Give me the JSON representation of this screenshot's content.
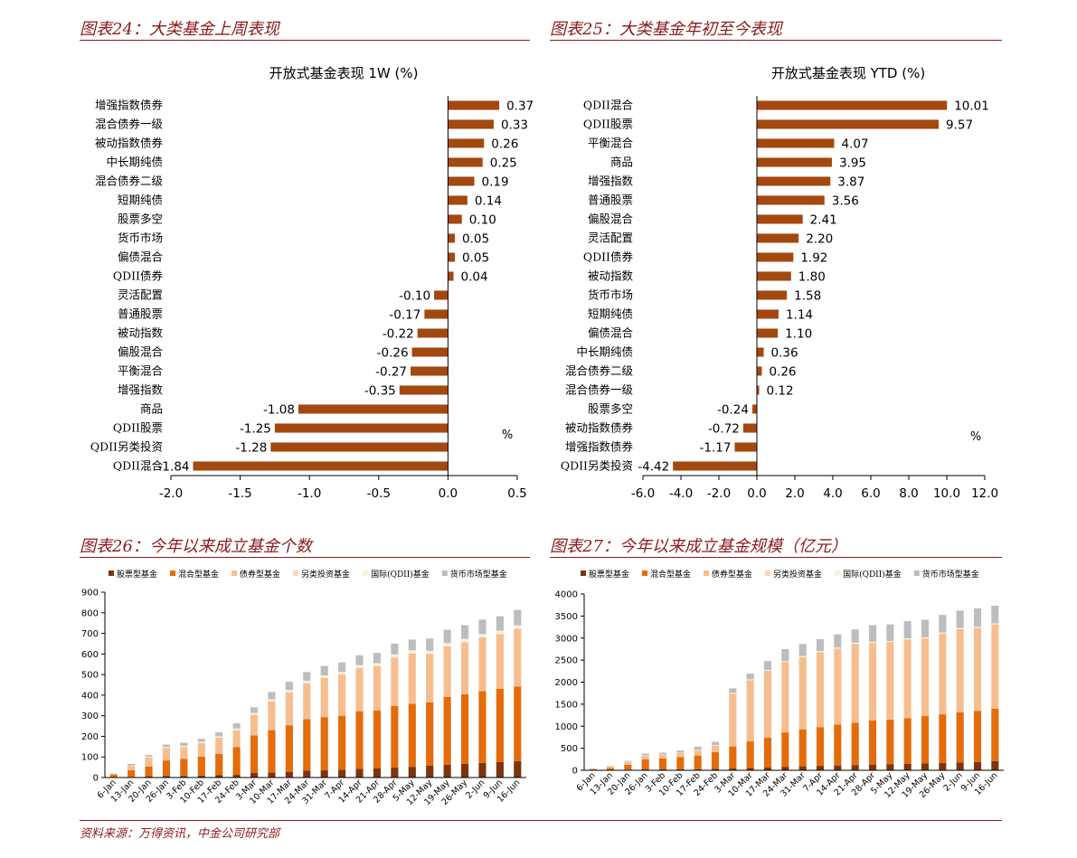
{
  "titles": {
    "p24": "图表24：大类基金上周表现",
    "p25": "图表25：大类基金年初至今表现",
    "p26": "图表26：今年以来成立基金个数",
    "p27": "图表27：今年以来成立基金规模（亿元）"
  },
  "source": "资料来源：万得资讯，中金公司研究部",
  "chart_data": [
    {
      "type": "bar",
      "orientation": "horizontal",
      "title": "开放式基金表现 1W (%)",
      "unit_label": "%",
      "xlim": [
        -2.0,
        0.5
      ],
      "xticks": [
        "-2.0",
        "-1.5",
        "-1.0",
        "-0.5",
        "0.0",
        "0.5"
      ],
      "categories": [
        "增强指数债券",
        "混合债券一级",
        "被动指数债券",
        "中长期纯债",
        "混合债券二级",
        "短期纯债",
        "股票多空",
        "货币市场",
        "偏债混合",
        "QDII债券",
        "灵活配置",
        "普通股票",
        "被动指数",
        "偏股混合",
        "平衡混合",
        "增强指数",
        "商品",
        "QDII股票",
        "QDII另类投资",
        "QDII混合"
      ],
      "values": [
        0.37,
        0.33,
        0.26,
        0.25,
        0.19,
        0.14,
        0.1,
        0.05,
        0.05,
        0.04,
        -0.1,
        -0.17,
        -0.22,
        -0.26,
        -0.27,
        -0.35,
        -1.08,
        -1.25,
        -1.28,
        -1.84
      ],
      "labels": [
        "0.37",
        "0.33",
        "0.26",
        "0.25",
        "0.19",
        "0.14",
        "0.10",
        "0.05",
        "0.05",
        "0.04",
        "-0.10",
        "-0.17",
        "-0.22",
        "-0.26",
        "-0.27",
        "-0.35",
        "-1.08",
        "-1.25",
        "-1.28",
        "-1.84"
      ],
      "color": "#a3480f"
    },
    {
      "type": "bar",
      "orientation": "horizontal",
      "title": "开放式基金表现 YTD (%)",
      "unit_label": "%",
      "xlim": [
        -6.0,
        12.0
      ],
      "xticks": [
        "-6.0",
        "-4.0",
        "-2.0",
        "0.0",
        "2.0",
        "4.0",
        "6.0",
        "8.0",
        "10.0",
        "12.0"
      ],
      "categories": [
        "QDII混合",
        "QDII股票",
        "平衡混合",
        "商品",
        "增强指数",
        "普通股票",
        "偏股混合",
        "灵活配置",
        "QDII债券",
        "被动指数",
        "货币市场",
        "短期纯债",
        "偏债混合",
        "中长期纯债",
        "混合债券二级",
        "混合债券一级",
        "股票多空",
        "被动指数债券",
        "增强指数债券",
        "QDII另类投资"
      ],
      "values": [
        10.01,
        9.57,
        4.07,
        3.95,
        3.87,
        3.56,
        2.41,
        2.2,
        1.92,
        1.8,
        1.58,
        1.14,
        1.1,
        0.36,
        0.26,
        0.12,
        -0.24,
        -0.72,
        -1.17,
        -4.42
      ],
      "labels": [
        "10.01",
        "9.57",
        "4.07",
        "3.95",
        "3.87",
        "3.56",
        "2.41",
        "2.20",
        "1.92",
        "1.80",
        "1.58",
        "1.14",
        "1.10",
        "0.36",
        "0.26",
        "0.12",
        "-0.24",
        "-0.72",
        "-1.17",
        "-4.42"
      ],
      "color": "#a3480f"
    },
    {
      "type": "bar",
      "stacked": true,
      "ylim": [
        0,
        900
      ],
      "yticks": [
        0,
        100,
        200,
        300,
        400,
        500,
        600,
        700,
        800,
        900
      ],
      "categories": [
        "6-Jan",
        "13-Jan",
        "20-Jan",
        "26-Jan",
        "3-Feb",
        "10-Feb",
        "17-Feb",
        "24-Feb",
        "3-Mar",
        "10-Mar",
        "17-Mar",
        "24-Mar",
        "31-Mar",
        "7-Apr",
        "14-Apr",
        "21-Apr",
        "28-Apr",
        "5-May",
        "12-May",
        "19-May",
        "26-May",
        "2-Jun",
        "9-Jun",
        "16-Jun"
      ],
      "series": [
        {
          "name": "股票型基金",
          "color": "#7a3510",
          "values": [
            1,
            3,
            6,
            8,
            8,
            9,
            11,
            13,
            22,
            25,
            28,
            33,
            35,
            38,
            42,
            44,
            48,
            52,
            57,
            62,
            67,
            71,
            76,
            80
          ]
        },
        {
          "name": "混合型基金",
          "color": "#e46c0a",
          "values": [
            13,
            32,
            47,
            75,
            82,
            93,
            104,
            135,
            182,
            205,
            225,
            250,
            258,
            262,
            280,
            282,
            300,
            306,
            308,
            330,
            337,
            348,
            355,
            362
          ]
        },
        {
          "name": "债券型基金",
          "color": "#f6be8e",
          "values": [
            5,
            20,
            45,
            60,
            58,
            65,
            78,
            82,
            100,
            140,
            160,
            175,
            190,
            200,
            210,
            215,
            235,
            245,
            235,
            245,
            253,
            262,
            265,
            280
          ]
        },
        {
          "name": "另类投资基金",
          "color": "#fbd9b8",
          "values": [
            0,
            0,
            0,
            0,
            0,
            0,
            0,
            0,
            0,
            0,
            0,
            0,
            0,
            0,
            0,
            0,
            0,
            0,
            0,
            0,
            0,
            0,
            0,
            0
          ]
        },
        {
          "name": "国际(QDII)基金",
          "color": "#fdeedd",
          "values": [
            2,
            3,
            4,
            5,
            6,
            6,
            7,
            8,
            10,
            10,
            12,
            12,
            13,
            13,
            14,
            14,
            15,
            15,
            15,
            16,
            16,
            16,
            17,
            17
          ]
        },
        {
          "name": "货币市场型基金",
          "color": "#bdbdbd",
          "values": [
            1,
            8,
            8,
            12,
            15,
            15,
            20,
            25,
            27,
            35,
            40,
            42,
            46,
            46,
            48,
            50,
            52,
            52,
            60,
            65,
            67,
            70,
            70,
            75
          ]
        }
      ]
    },
    {
      "type": "bar",
      "stacked": true,
      "ylim": [
        0,
        4000
      ],
      "yticks": [
        0,
        500,
        1000,
        1500,
        2000,
        2500,
        3000,
        3500,
        4000
      ],
      "categories": [
        "6-Jan",
        "13-Jan",
        "20-Jan",
        "26-Jan",
        "3-Feb",
        "10-Feb",
        "17-Feb",
        "24-Feb",
        "3-Mar",
        "10-Mar",
        "17-Mar",
        "24-Mar",
        "31-Mar",
        "7-Apr",
        "14-Apr",
        "21-Apr",
        "28-Apr",
        "5-May",
        "12-May",
        "19-May",
        "26-May",
        "2-Jun",
        "9-Jun",
        "16-Jun"
      ],
      "series": [
        {
          "name": "股票型基金",
          "color": "#7a3510",
          "values": [
            2,
            10,
            15,
            20,
            20,
            20,
            25,
            30,
            40,
            55,
            60,
            80,
            90,
            100,
            110,
            120,
            130,
            140,
            150,
            160,
            170,
            180,
            190,
            210
          ]
        },
        {
          "name": "混合型基金",
          "color": "#e46c0a",
          "values": [
            20,
            40,
            110,
            230,
            250,
            280,
            310,
            380,
            500,
            600,
            680,
            780,
            840,
            880,
            930,
            960,
            1000,
            1010,
            1030,
            1070,
            1100,
            1140,
            1160,
            1190
          ]
        },
        {
          "name": "债券型基金",
          "color": "#f6be8e",
          "values": [
            20,
            35,
            60,
            80,
            80,
            90,
            120,
            150,
            1200,
            1390,
            1520,
            1600,
            1640,
            1700,
            1720,
            1790,
            1760,
            1760,
            1790,
            1760,
            1830,
            1880,
            1880,
            1910
          ]
        },
        {
          "name": "另类投资基金",
          "color": "#fbd9b8",
          "values": [
            0,
            0,
            0,
            0,
            0,
            0,
            0,
            0,
            0,
            0,
            0,
            0,
            0,
            0,
            0,
            0,
            0,
            0,
            0,
            0,
            0,
            0,
            0,
            0
          ]
        },
        {
          "name": "国际(QDII)基金",
          "color": "#fdeedd",
          "values": [
            5,
            8,
            10,
            10,
            10,
            10,
            12,
            15,
            20,
            20,
            20,
            20,
            25,
            25,
            25,
            25,
            25,
            25,
            25,
            25,
            25,
            25,
            25,
            25
          ]
        },
        {
          "name": "货币市场型基金",
          "color": "#bdbdbd",
          "values": [
            5,
            10,
            20,
            40,
            40,
            50,
            70,
            70,
            100,
            130,
            200,
            270,
            270,
            270,
            300,
            300,
            380,
            375,
            390,
            400,
            400,
            400,
            420,
            400
          ]
        }
      ]
    }
  ]
}
